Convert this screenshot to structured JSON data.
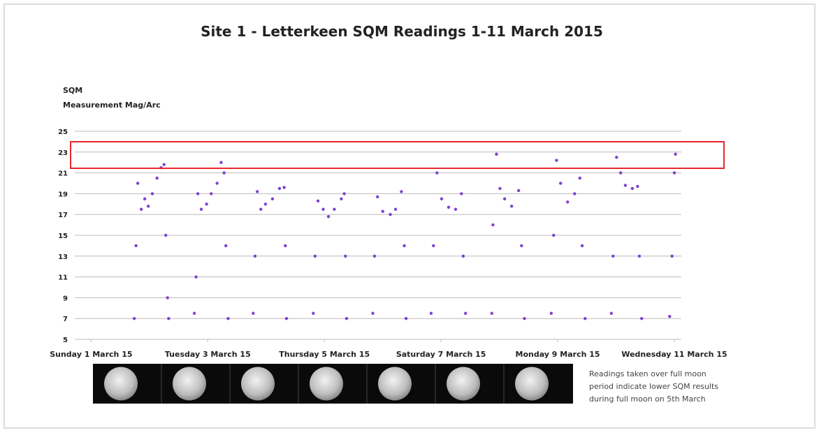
{
  "chart_data": {
    "type": "scatter",
    "title": "Site 1 -  Letterkeen SQM Readings 1-11 March 2015",
    "y_label": [
      "SQM",
      "Measurement Mag/Arc"
    ],
    "color": "#7b42d0",
    "grid": true,
    "ylim": [
      5,
      25
    ],
    "yticks": [
      5,
      7,
      9,
      11,
      13,
      15,
      17,
      19,
      21,
      23,
      25
    ],
    "xlim": [
      0.72,
      11.12
    ],
    "xticks": [
      {
        "value": 1,
        "label": "Sunday 1 March 15"
      },
      {
        "value": 3,
        "label": "Tuesday 3 March 15"
      },
      {
        "value": 5,
        "label": "Thursday 5 March 15"
      },
      {
        "value": 7,
        "label": "Saturday 7 March 15"
      },
      {
        "value": 9,
        "label": "Monday 9 March 15"
      },
      {
        "value": 11,
        "label": "Wednesday 11 March 15"
      }
    ],
    "x": [
      1.74,
      1.77,
      1.8,
      1.86,
      1.92,
      1.98,
      2.05,
      2.13,
      2.2,
      2.25,
      2.28,
      2.31,
      2.33,
      2.77,
      2.8,
      2.83,
      2.89,
      2.98,
      3.06,
      3.16,
      3.23,
      3.28,
      3.31,
      3.35,
      3.78,
      3.81,
      3.85,
      3.91,
      3.99,
      4.11,
      4.23,
      4.31,
      4.33,
      4.35,
      4.81,
      4.84,
      4.89,
      4.98,
      5.07,
      5.17,
      5.29,
      5.34,
      5.36,
      5.38,
      5.83,
      5.86,
      5.91,
      6.0,
      6.13,
      6.22,
      6.32,
      6.37,
      6.4,
      6.83,
      6.87,
      6.93,
      7.01,
      7.13,
      7.25,
      7.35,
      7.38,
      7.42,
      7.87,
      7.89,
      7.95,
      8.01,
      8.09,
      8.21,
      8.33,
      8.38,
      8.43,
      8.89,
      8.93,
      8.98,
      9.05,
      9.17,
      9.29,
      9.38,
      9.42,
      9.47,
      9.92,
      9.95,
      10.01,
      10.08,
      10.16,
      10.28,
      10.37,
      10.4,
      10.44,
      10.92,
      10.96,
      11.0,
      11.02
    ],
    "values": [
      7,
      14,
      20,
      17.5,
      18.5,
      17.8,
      19,
      20.5,
      21.5,
      21.8,
      15,
      9,
      7,
      7.5,
      11,
      19,
      17.5,
      18,
      19,
      20,
      22,
      21,
      14,
      7,
      7.5,
      13,
      19.2,
      17.5,
      18,
      18.5,
      19.5,
      19.6,
      14,
      7,
      7.5,
      13,
      18.3,
      17.5,
      16.8,
      17.5,
      18.5,
      19,
      13,
      7,
      7.5,
      13,
      18.7,
      17.3,
      17,
      17.5,
      19.2,
      14,
      7,
      7.5,
      14,
      21,
      18.5,
      17.7,
      17.5,
      19,
      13,
      7.5,
      7.5,
      16,
      22.8,
      19.5,
      18.5,
      17.8,
      19.3,
      14,
      7,
      7.5,
      15,
      22.2,
      20,
      18.2,
      19,
      20.5,
      14,
      7,
      7.5,
      13,
      22.5,
      21,
      19.8,
      19.5,
      19.7,
      13,
      7,
      7.2,
      13,
      21,
      22.8
    ]
  },
  "note": [
    "Readings taken over full moon",
    "period indicate lower SQM results",
    "during full moon on 5th March"
  ]
}
